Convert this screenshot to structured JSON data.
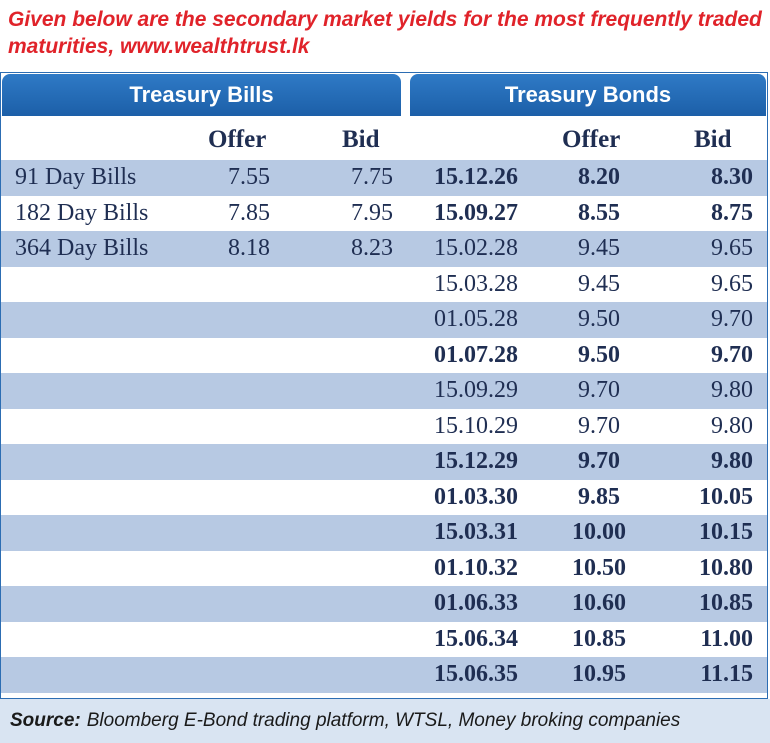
{
  "headline": "Given below are the secondary market yields for the most frequently traded maturities, www.wealthtrust.lk",
  "bills": {
    "title": "Treasury Bills",
    "offer_label": "Offer",
    "bid_label": "Bid",
    "rows": [
      {
        "name": "91 Day Bills",
        "offer": "7.55",
        "bid": "7.75"
      },
      {
        "name": "182 Day Bills",
        "offer": "7.85",
        "bid": "7.95"
      },
      {
        "name": "364 Day Bills",
        "offer": "8.18",
        "bid": "8.23"
      }
    ]
  },
  "bonds": {
    "title": "Treasury Bonds",
    "offer_label": "Offer",
    "bid_label": "Bid",
    "rows": [
      {
        "maturity": "15.12.26",
        "offer": "8.20",
        "bid": "8.30",
        "bold": true
      },
      {
        "maturity": "15.09.27",
        "offer": "8.55",
        "bid": "8.75",
        "bold": true
      },
      {
        "maturity": "15.02.28",
        "offer": "9.45",
        "bid": "9.65",
        "bold": false
      },
      {
        "maturity": "15.03.28",
        "offer": "9.45",
        "bid": "9.65",
        "bold": false
      },
      {
        "maturity": "01.05.28",
        "offer": "9.50",
        "bid": "9.70",
        "bold": false
      },
      {
        "maturity": "01.07.28",
        "offer": "9.50",
        "bid": "9.70",
        "bold": true
      },
      {
        "maturity": "15.09.29",
        "offer": "9.70",
        "bid": "9.80",
        "bold": false
      },
      {
        "maturity": "15.10.29",
        "offer": "9.70",
        "bid": "9.80",
        "bold": false
      },
      {
        "maturity": "15.12.29",
        "offer": "9.70",
        "bid": "9.80",
        "bold": true
      },
      {
        "maturity": "01.03.30",
        "offer": "9.85",
        "bid": "10.05",
        "bold": true
      },
      {
        "maturity": "15.03.31",
        "offer": "10.00",
        "bid": "10.15",
        "bold": true
      },
      {
        "maturity": "01.10.32",
        "offer": "10.50",
        "bid": "10.80",
        "bold": true
      },
      {
        "maturity": "01.06.33",
        "offer": "10.60",
        "bid": "10.85",
        "bold": true
      },
      {
        "maturity": "15.06.34",
        "offer": "10.85",
        "bid": "11.00",
        "bold": true
      },
      {
        "maturity": "15.06.35",
        "offer": "10.95",
        "bid": "11.15",
        "bold": true
      }
    ]
  },
  "source": {
    "label": "Source:",
    "text": "Bloomberg E-Bond trading platform, WTSL, Money broking companies"
  },
  "colors": {
    "headline": "#e0232a",
    "header_blue": "#1c5fa8",
    "row_shade": "#b7c9e3",
    "text": "#1f2e52"
  }
}
